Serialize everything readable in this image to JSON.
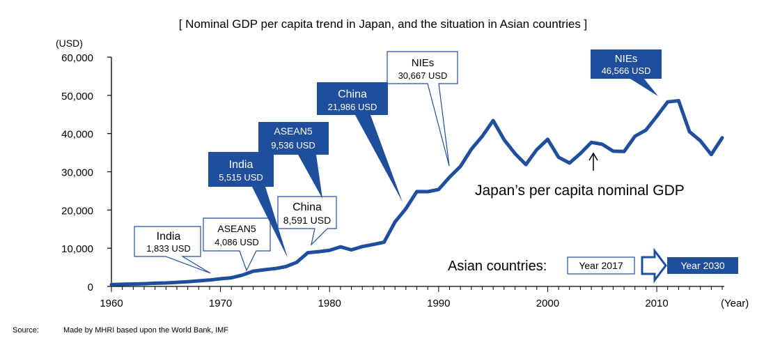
{
  "chart_data": {
    "type": "line",
    "title": "[ Nominal GDP per capita trend in Japan, and the situation in Asian countries ]",
    "ylabel": "(USD)",
    "xlabel": "(Year)",
    "ylim": [
      0,
      60000
    ],
    "xlim": [
      1960,
      2016
    ],
    "y_ticks": [
      "0",
      "10,000",
      "20,000",
      "30,000",
      "40,000",
      "50,000",
      "60,000"
    ],
    "x_ticks": [
      "1960",
      "1970",
      "1980",
      "1990",
      "2000",
      "2010"
    ],
    "series": [
      {
        "name": "Japan's per capita nominal GDP",
        "color": "#1f4e9c",
        "x": [
          1960,
          1961,
          1962,
          1963,
          1964,
          1965,
          1966,
          1967,
          1968,
          1969,
          1970,
          1971,
          1972,
          1973,
          1974,
          1975,
          1976,
          1977,
          1978,
          1979,
          1980,
          1981,
          1982,
          1983,
          1984,
          1985,
          1986,
          1987,
          1988,
          1989,
          1990,
          1991,
          1992,
          1993,
          1994,
          1995,
          1996,
          1997,
          1998,
          1999,
          2000,
          2001,
          2002,
          2003,
          2004,
          2005,
          2006,
          2007,
          2008,
          2009,
          2010,
          2011,
          2012,
          2013,
          2014,
          2015,
          2016
        ],
        "values": [
          480,
          560,
          630,
          720,
          840,
          920,
          1070,
          1230,
          1450,
          1670,
          2000,
          2270,
          2960,
          3990,
          4350,
          4670,
          5200,
          6330,
          8820,
          9100,
          9460,
          10360,
          9580,
          10430,
          10980,
          11580,
          16880,
          20360,
          24820,
          24800,
          25360,
          28600,
          31400,
          35900,
          39300,
          43400,
          38400,
          34800,
          31900,
          35800,
          38500,
          33800,
          32300,
          34800,
          37700,
          37200,
          35400,
          35300,
          39300,
          40900,
          44500,
          48300,
          48600,
          40500,
          38100,
          34500,
          38900
        ]
      }
    ],
    "annotations": {
      "series_label": "Japan’s per capita nominal GDP",
      "callouts_2017": [
        {
          "name": "India",
          "value": "1,833 USD",
          "year": 1969
        },
        {
          "name": "ASEAN5",
          "value": "4,086 USD",
          "year": 1972
        },
        {
          "name": "China",
          "value": "8,591 USD",
          "year": 1978
        },
        {
          "name": "NIEs",
          "value": "30,667 USD",
          "year": 1991
        }
      ],
      "callouts_2030": [
        {
          "name": "India",
          "value": "5,515 USD",
          "year": 1976
        },
        {
          "name": "ASEAN5",
          "value": "9,536 USD",
          "year": 1979
        },
        {
          "name": "China",
          "value": "21,986 USD",
          "year": 1987
        },
        {
          "name": "NIEs",
          "value": "46,566 USD",
          "year": 2011
        }
      ]
    },
    "legend": {
      "prefix": "Asian countries:",
      "year_2017": "Year 2017",
      "year_2030": "Year 2030",
      "color_2030": "#1f4e9c",
      "color_2017": "#ffffff"
    }
  },
  "source": {
    "label": "Source:",
    "text": "Made by MHRI based upon the World Bank, IMF"
  }
}
